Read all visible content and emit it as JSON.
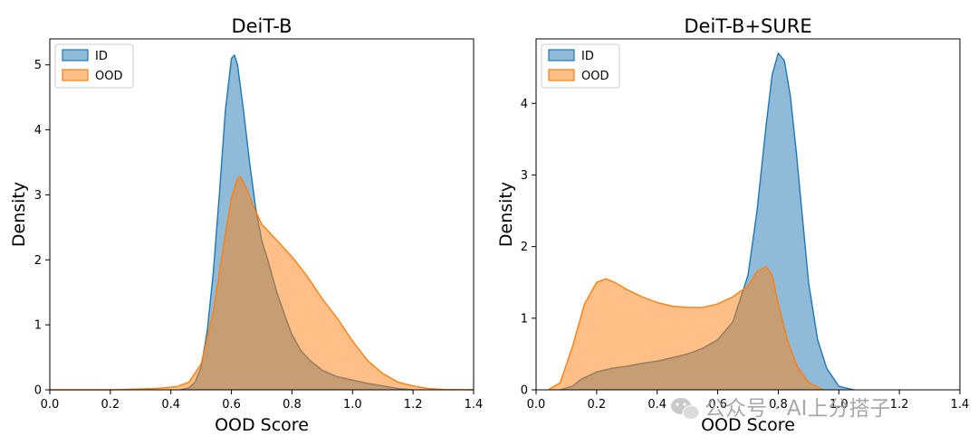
{
  "chart_data": [
    {
      "type": "area",
      "title": "DeiT-B",
      "xlabel": "OOD Score",
      "ylabel": "Density",
      "xlim": [
        0.0,
        1.4
      ],
      "ylim": [
        0,
        5.4
      ],
      "xticks": [
        0.0,
        0.2,
        0.4,
        0.6,
        0.8,
        1.0,
        1.2,
        1.4
      ],
      "xtick_labels": [
        "0.0",
        "0.2",
        "0.4",
        "0.6",
        "0.8",
        "1.0",
        "1.2",
        "1.4"
      ],
      "yticks": [
        0,
        1,
        2,
        3,
        4,
        5
      ],
      "ytick_labels": [
        "0",
        "1",
        "2",
        "3",
        "4",
        "5"
      ],
      "legend_position": "top-left",
      "series": [
        {
          "name": "ID",
          "color": "#1f77b4",
          "x": [
            0.43,
            0.46,
            0.48,
            0.5,
            0.52,
            0.54,
            0.56,
            0.58,
            0.6,
            0.61,
            0.62,
            0.64,
            0.66,
            0.68,
            0.7,
            0.72,
            0.75,
            0.78,
            0.8,
            0.83,
            0.86,
            0.9,
            0.95,
            1.0,
            1.05,
            1.1,
            1.15,
            1.2
          ],
          "values": [
            0.0,
            0.03,
            0.12,
            0.35,
            0.9,
            1.8,
            3.0,
            4.3,
            5.1,
            5.15,
            5.0,
            4.3,
            3.5,
            2.8,
            2.3,
            2.0,
            1.5,
            1.1,
            0.85,
            0.6,
            0.45,
            0.3,
            0.2,
            0.15,
            0.1,
            0.06,
            0.02,
            0.0
          ]
        },
        {
          "name": "OOD",
          "color": "#ff7f0e",
          "x": [
            0.0,
            0.2,
            0.35,
            0.42,
            0.46,
            0.5,
            0.54,
            0.58,
            0.6,
            0.62,
            0.63,
            0.65,
            0.67,
            0.7,
            0.75,
            0.8,
            0.85,
            0.9,
            0.95,
            1.0,
            1.05,
            1.1,
            1.15,
            1.2,
            1.25,
            1.3,
            1.4
          ],
          "values": [
            0.0,
            0.0,
            0.02,
            0.05,
            0.12,
            0.4,
            1.2,
            2.4,
            2.95,
            3.25,
            3.28,
            3.1,
            2.85,
            2.55,
            2.3,
            2.05,
            1.75,
            1.4,
            1.1,
            0.75,
            0.45,
            0.25,
            0.12,
            0.06,
            0.02,
            0.005,
            0.0
          ]
        }
      ]
    },
    {
      "type": "area",
      "title": "DeiT-B+SURE",
      "xlabel": "OOD Score",
      "ylabel": "Density",
      "xlim": [
        0.0,
        1.4
      ],
      "ylim": [
        0,
        4.9
      ],
      "xticks": [
        0.0,
        0.2,
        0.4,
        0.6,
        0.8,
        1.0,
        1.2,
        1.4
      ],
      "xtick_labels": [
        "0.0",
        "0.2",
        "0.4",
        "0.6",
        "0.8",
        "1.0",
        "1.2",
        "1.4"
      ],
      "yticks": [
        0,
        1,
        2,
        3,
        4
      ],
      "ytick_labels": [
        "0",
        "1",
        "2",
        "3",
        "4"
      ],
      "legend_position": "top-left",
      "series": [
        {
          "name": "ID",
          "color": "#1f77b4",
          "x": [
            0.08,
            0.12,
            0.15,
            0.2,
            0.25,
            0.3,
            0.35,
            0.4,
            0.45,
            0.5,
            0.55,
            0.6,
            0.65,
            0.7,
            0.73,
            0.76,
            0.78,
            0.8,
            0.82,
            0.84,
            0.86,
            0.88,
            0.9,
            0.93,
            0.96,
            1.0,
            1.05
          ],
          "values": [
            0.0,
            0.05,
            0.15,
            0.25,
            0.3,
            0.33,
            0.37,
            0.4,
            0.45,
            0.5,
            0.58,
            0.7,
            0.95,
            1.6,
            2.5,
            3.7,
            4.4,
            4.7,
            4.6,
            4.1,
            3.3,
            2.4,
            1.5,
            0.7,
            0.3,
            0.05,
            0.0
          ]
        },
        {
          "name": "OOD",
          "color": "#ff7f0e",
          "x": [
            0.04,
            0.08,
            0.12,
            0.16,
            0.2,
            0.23,
            0.26,
            0.3,
            0.35,
            0.4,
            0.45,
            0.5,
            0.55,
            0.6,
            0.65,
            0.7,
            0.73,
            0.76,
            0.78,
            0.8,
            0.83,
            0.86,
            0.9,
            0.95
          ],
          "values": [
            0.0,
            0.1,
            0.6,
            1.2,
            1.5,
            1.55,
            1.5,
            1.4,
            1.3,
            1.22,
            1.17,
            1.15,
            1.15,
            1.2,
            1.3,
            1.45,
            1.65,
            1.72,
            1.6,
            1.2,
            0.7,
            0.35,
            0.1,
            0.0
          ]
        }
      ]
    }
  ],
  "watermark": {
    "icon": "wechat-icon",
    "text": "公众号 · AI上分搭子"
  }
}
